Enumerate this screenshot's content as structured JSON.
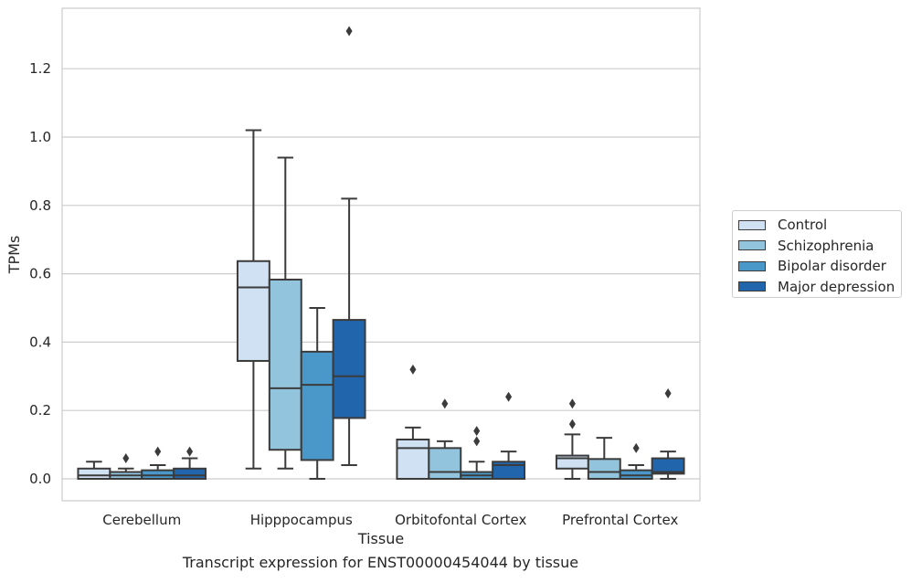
{
  "chart_data": {
    "type": "box",
    "title": "",
    "xlabel": "Tissue",
    "ylabel": "TPMs",
    "ylim": [
      -0.065,
      1.38
    ],
    "yticks": [
      "0.0",
      "0.2",
      "0.4",
      "0.6",
      "0.8",
      "1.0",
      "1.2"
    ],
    "grid": "horizontal",
    "legend_position": "right",
    "categories": [
      "Cerebellum",
      "Hipppocampus",
      "Orbitofontal Cortex",
      "Prefrontal Cortex"
    ],
    "series": [
      {
        "name": "Control",
        "color": "#cfe1f2",
        "boxes": [
          {
            "whislo": 0.0,
            "q1": 0.0,
            "med": 0.01,
            "q3": 0.03,
            "whishi": 0.05,
            "fliers": []
          },
          {
            "whislo": 0.03,
            "q1": 0.345,
            "med": 0.56,
            "q3": 0.637,
            "whishi": 1.02,
            "fliers": []
          },
          {
            "whislo": 0.0,
            "q1": 0.0,
            "med": 0.09,
            "q3": 0.115,
            "whishi": 0.15,
            "fliers": [
              0.32
            ]
          },
          {
            "whislo": 0.0,
            "q1": 0.03,
            "med": 0.06,
            "q3": 0.068,
            "whishi": 0.13,
            "fliers": [
              0.16,
              0.22
            ]
          }
        ]
      },
      {
        "name": "Schizophrenia",
        "color": "#93c4de",
        "boxes": [
          {
            "whislo": 0.0,
            "q1": 0.0,
            "med": 0.01,
            "q3": 0.02,
            "whishi": 0.03,
            "fliers": [
              0.06
            ]
          },
          {
            "whislo": 0.03,
            "q1": 0.085,
            "med": 0.265,
            "q3": 0.583,
            "whishi": 0.94,
            "fliers": []
          },
          {
            "whislo": 0.0,
            "q1": 0.0,
            "med": 0.02,
            "q3": 0.09,
            "whishi": 0.11,
            "fliers": [
              0.22
            ]
          },
          {
            "whislo": 0.0,
            "q1": 0.0,
            "med": 0.02,
            "q3": 0.058,
            "whishi": 0.12,
            "fliers": []
          }
        ]
      },
      {
        "name": "Bipolar disorder",
        "color": "#4a98c9",
        "boxes": [
          {
            "whislo": 0.0,
            "q1": 0.0,
            "med": 0.01,
            "q3": 0.025,
            "whishi": 0.04,
            "fliers": [
              0.08
            ]
          },
          {
            "whislo": 0.0,
            "q1": 0.055,
            "med": 0.275,
            "q3": 0.372,
            "whishi": 0.5,
            "fliers": []
          },
          {
            "whislo": 0.0,
            "q1": 0.0,
            "med": 0.01,
            "q3": 0.02,
            "whishi": 0.05,
            "fliers": [
              0.11,
              0.14
            ]
          },
          {
            "whislo": 0.0,
            "q1": 0.0,
            "med": 0.01,
            "q3": 0.025,
            "whishi": 0.04,
            "fliers": [
              0.09
            ]
          }
        ]
      },
      {
        "name": "Major depression",
        "color": "#2166ac",
        "boxes": [
          {
            "whislo": 0.0,
            "q1": 0.0,
            "med": 0.01,
            "q3": 0.03,
            "whishi": 0.06,
            "fliers": [
              0.08
            ]
          },
          {
            "whislo": 0.04,
            "q1": 0.178,
            "med": 0.3,
            "q3": 0.465,
            "whishi": 0.82,
            "fliers": [
              1.31
            ]
          },
          {
            "whislo": 0.0,
            "q1": 0.0,
            "med": 0.04,
            "q3": 0.05,
            "whishi": 0.08,
            "fliers": [
              0.24
            ]
          },
          {
            "whislo": 0.0,
            "q1": 0.015,
            "med": 0.02,
            "q3": 0.06,
            "whishi": 0.08,
            "fliers": [
              0.25
            ]
          }
        ]
      }
    ]
  },
  "caption": "Transcript expression for ENST00000454044 by tissue"
}
